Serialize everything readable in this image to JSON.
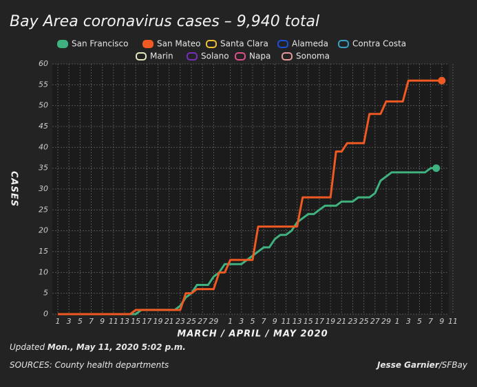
{
  "chart_data": {
    "type": "line",
    "title": "Bay Area coronavirus cases – 9,940 total",
    "y_label": "CASES",
    "x_label": "MARCH / APRIL / MAY 2020",
    "categories": [
      "1",
      null,
      "3",
      null,
      "5",
      null,
      "7",
      null,
      "9",
      null,
      "11",
      null,
      "13",
      null,
      "15",
      null,
      "17",
      null,
      "19",
      null,
      "21",
      null,
      "23",
      null,
      "25",
      null,
      "27",
      null,
      "29",
      null,
      null,
      "1",
      null,
      "3",
      null,
      "5",
      null,
      "7",
      null,
      "9",
      null,
      "11",
      null,
      "13",
      null,
      "15",
      null,
      "17",
      null,
      "19",
      null,
      "21",
      null,
      "23",
      null,
      "25",
      null,
      "27",
      null,
      "29",
      null,
      "1",
      null,
      "3",
      null,
      "5",
      null,
      "7",
      null,
      "9",
      null,
      "11"
    ],
    "series": [
      {
        "name": "San Francisco",
        "color": "#3fb27f",
        "values": [
          0,
          0,
          0,
          0,
          0,
          0,
          0,
          0,
          0,
          0,
          0,
          0,
          0,
          0,
          0,
          1,
          1,
          1,
          1,
          1,
          1,
          1,
          2,
          4,
          5,
          7,
          7,
          7,
          9,
          10,
          12,
          12,
          12,
          12,
          13,
          14,
          15,
          16,
          16,
          18,
          19,
          19,
          20,
          22,
          23,
          24,
          24,
          25,
          26,
          26,
          26,
          27,
          27,
          27,
          28,
          28,
          28,
          29,
          32,
          33,
          34,
          34,
          34,
          34,
          34,
          34,
          34,
          35,
          35,
          null,
          null,
          null
        ]
      },
      {
        "name": "San Mateo",
        "color": "#f05a22",
        "values": [
          0,
          0,
          0,
          0,
          0,
          0,
          0,
          0,
          0,
          0,
          0,
          0,
          0,
          0,
          1,
          1,
          1,
          1,
          1,
          1,
          1,
          1,
          1,
          5,
          5,
          6,
          6,
          6,
          6,
          10,
          10,
          13,
          13,
          13,
          13,
          13,
          21,
          21,
          21,
          21,
          21,
          21,
          21,
          21,
          28,
          28,
          28,
          28,
          28,
          28,
          39,
          39,
          41,
          41,
          41,
          41,
          48,
          48,
          48,
          51,
          51,
          51,
          51,
          56,
          56,
          56,
          56,
          56,
          56,
          56,
          null,
          null
        ]
      },
      {
        "name": "Santa Clara",
        "color": "#f2c12e"
      },
      {
        "name": "Alameda",
        "color": "#1e4fd8"
      },
      {
        "name": "Contra Costa",
        "color": "#3aa0c8"
      },
      {
        "name": "Marin",
        "color": "#e8e8c0"
      },
      {
        "name": "Solano",
        "color": "#7a2ec0"
      },
      {
        "name": "Napa",
        "color": "#e0508a"
      },
      {
        "name": "Sonoma",
        "color": "#e89a9a"
      }
    ],
    "ylim": [
      0,
      60
    ],
    "yticks": [
      0,
      5,
      10,
      15,
      20,
      25,
      30,
      35,
      40,
      45,
      50,
      55,
      60
    ],
    "grid": true
  },
  "footer": {
    "updated_label": "Updated",
    "updated": "Mon., May 11, 2020 5:02 p.m.",
    "sources": "SOURCES: County health departments",
    "author": "Jesse Garnier",
    "outlet": "/SFBay"
  }
}
